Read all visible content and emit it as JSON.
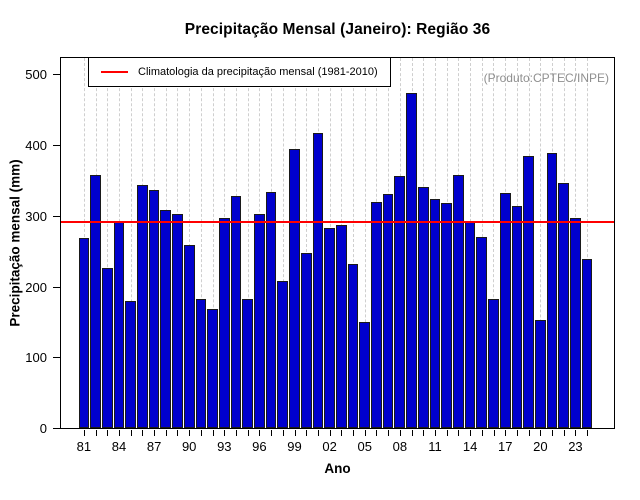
{
  "chart_data": {
    "type": "bar",
    "title": "Precipitação Mensal (Janeiro): Região 36",
    "xlabel": "Ano",
    "ylabel": "Precipitação mensal (mm)",
    "ylim": [
      0,
      526
    ],
    "yticks": [
      0,
      100,
      200,
      300,
      400,
      500
    ],
    "grid": "vertical-dashed",
    "legend_position": "top-left",
    "years": [
      1981,
      1982,
      1983,
      1984,
      1985,
      1986,
      1987,
      1988,
      1989,
      1990,
      1991,
      1992,
      1993,
      1994,
      1995,
      1996,
      1997,
      1998,
      1999,
      2000,
      2001,
      2002,
      2003,
      2004,
      2005,
      2006,
      2007,
      2008,
      2009,
      2010,
      2011,
      2012,
      2013,
      2014,
      2015,
      2016,
      2017,
      2018,
      2019,
      2020,
      2021,
      2022,
      2023,
      2024
    ],
    "values": [
      270,
      360,
      228,
      295,
      181,
      345,
      339,
      310,
      304,
      260,
      183,
      169,
      298,
      330,
      184,
      304,
      336,
      209,
      396,
      249,
      420,
      285,
      288,
      233,
      151,
      322,
      332,
      358,
      476,
      343,
      325,
      320,
      359,
      294,
      272,
      183,
      334,
      315,
      387,
      153,
      391,
      349,
      299,
      240
    ],
    "x_tick_labels": [
      "81",
      "84",
      "87",
      "90",
      "93",
      "96",
      "99",
      "02",
      "05",
      "08",
      "11",
      "14",
      "17",
      "20",
      "23"
    ],
    "x_label_interval": 3,
    "climatology": {
      "label": "Climatologia da precipitação mensal (1981-2010)",
      "value": 292,
      "color": "#FF0000"
    },
    "annotation": {
      "text": "(Produto:CPTEC/INPE)",
      "color": "#8f8f8f"
    },
    "colors": {
      "bar_fill": "#0000CD",
      "bar_border": "#1a1a1a",
      "gridline": "#cfcfcf"
    }
  }
}
